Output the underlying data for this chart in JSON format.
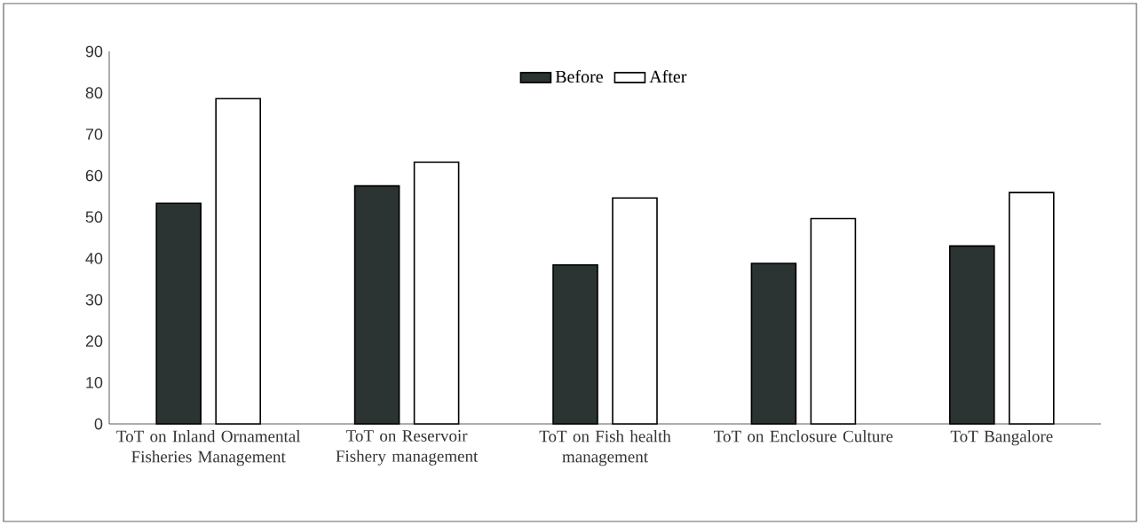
{
  "chart_data": {
    "type": "bar",
    "categories": [
      "ToT on Inland Ornamental Fisheries Management",
      "ToT on Reservoir Fishery management",
      "ToT on Fish health management",
      "ToT on Enclosure Culture",
      "ToT Bangalore"
    ],
    "series": [
      {
        "name": "Before",
        "color": "#2b3333",
        "values": [
          53.3,
          57.5,
          38.4,
          38.8,
          43.0
        ]
      },
      {
        "name": "After",
        "color": "#ffffff",
        "values": [
          78.6,
          63.2,
          54.6,
          49.6,
          55.9
        ]
      }
    ],
    "ylim": [
      0,
      90
    ],
    "yticks": [
      0,
      10,
      20,
      30,
      40,
      50,
      60,
      70,
      80,
      90
    ],
    "grid": false,
    "legend": "top"
  }
}
